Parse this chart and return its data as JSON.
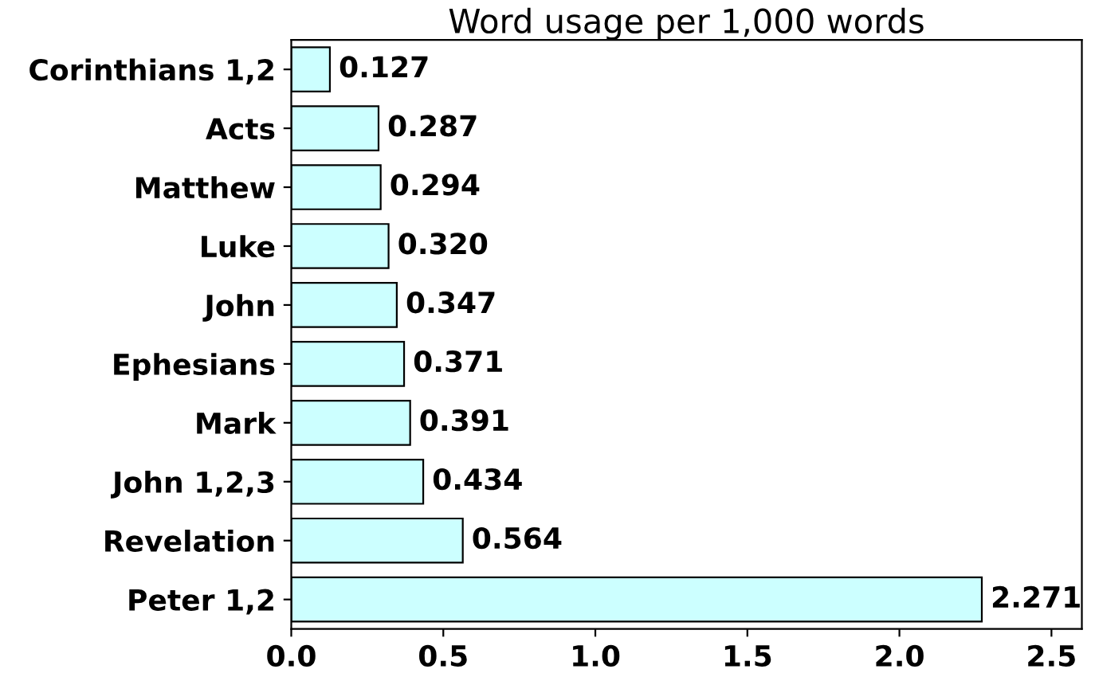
{
  "chart_data": {
    "type": "bar",
    "orientation": "horizontal",
    "title": "Word usage per 1,000 words",
    "categories": [
      "Corinthians 1,2",
      "Acts",
      "Matthew",
      "Luke",
      "John",
      "Ephesians",
      "Mark",
      "John 1,2,3",
      "Revelation",
      "Peter 1,2"
    ],
    "values": [
      0.127,
      0.287,
      0.294,
      0.32,
      0.347,
      0.371,
      0.391,
      0.434,
      0.564,
      2.271
    ],
    "value_labels": [
      "0.127",
      "0.287",
      "0.294",
      "0.320",
      "0.347",
      "0.371",
      "0.391",
      "0.434",
      "0.564",
      "2.271"
    ],
    "color": "#ccffff",
    "grid": false,
    "xlim": [
      0,
      2.6
    ],
    "xticks": [
      {
        "value": 0,
        "label": "0.0"
      },
      {
        "value": 0.5,
        "label": "0.5"
      },
      {
        "value": 1,
        "label": "1.0"
      },
      {
        "value": 1.5,
        "label": "1.5"
      },
      {
        "value": 2,
        "label": "2.0"
      },
      {
        "value": 2.5,
        "label": "2.5"
      }
    ]
  }
}
